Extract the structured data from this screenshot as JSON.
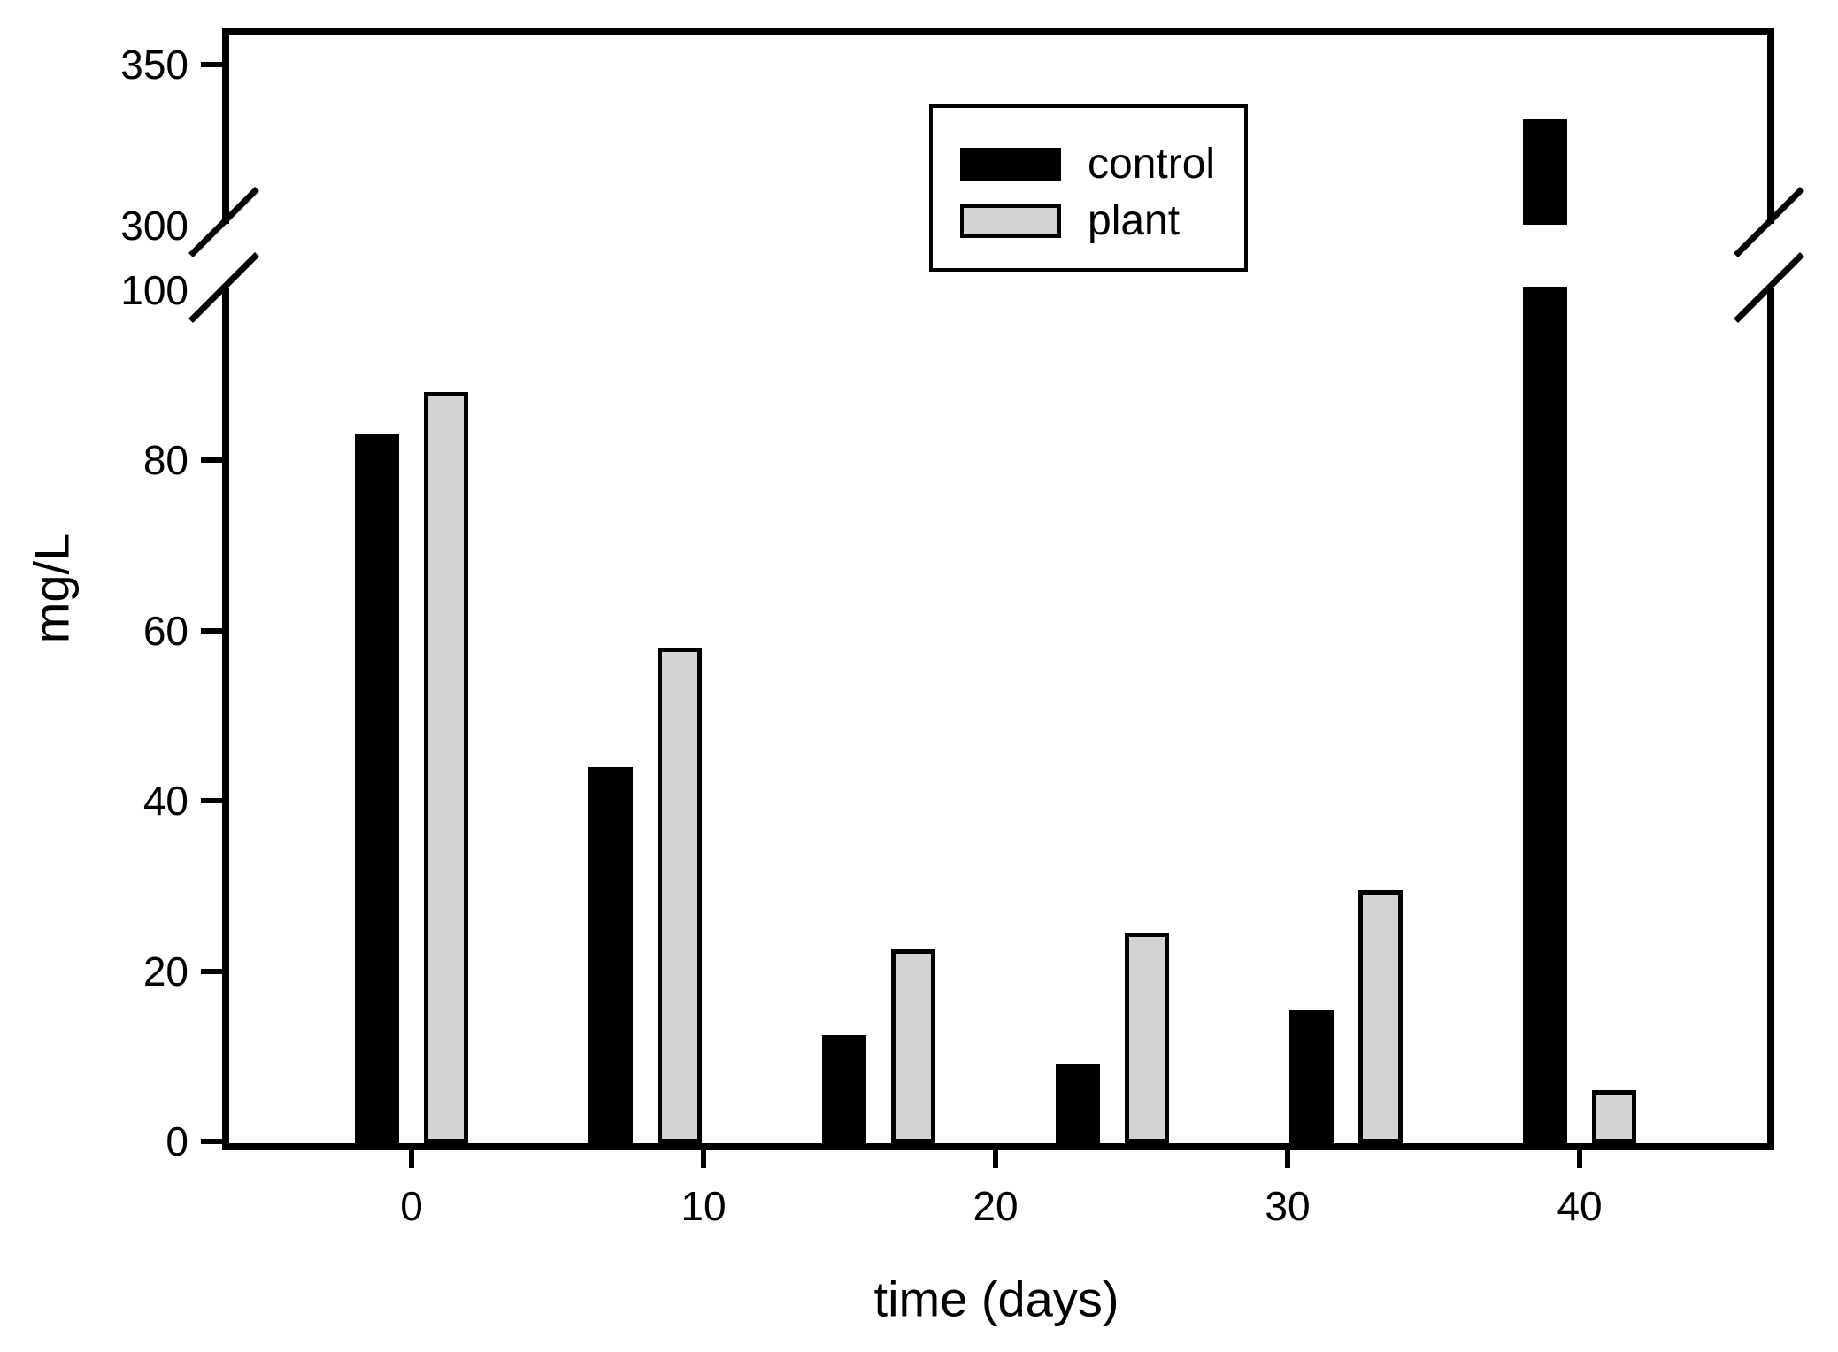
{
  "chart_data": {
    "type": "bar",
    "title": "",
    "xlabel": "time (days)",
    "ylabel": "mg/L",
    "x_days": [
      0,
      8,
      16,
      24,
      32,
      40
    ],
    "series": [
      {
        "name": "control",
        "color": "#000000",
        "values": [
          83,
          44,
          12.5,
          9,
          15.5,
          333
        ]
      },
      {
        "name": "plant",
        "color": "#d3d3d3",
        "values": [
          88,
          58,
          22.5,
          24.5,
          29.5,
          6
        ]
      }
    ],
    "y_axis": {
      "lower_segment": {
        "min": 0,
        "max": 100
      },
      "upper_segment": {
        "min": 300,
        "max": 350
      },
      "break_between": [
        100,
        300
      ]
    },
    "y_ticks": [
      {
        "label": "350",
        "value": 350,
        "tick": true
      },
      {
        "label": "300",
        "value": 300,
        "tick": false
      },
      {
        "label": "100",
        "value": 100,
        "tick": false
      },
      {
        "label": "80",
        "value": 80,
        "tick": true
      },
      {
        "label": "60",
        "value": 60,
        "tick": true
      },
      {
        "label": "40",
        "value": 40,
        "tick": true
      },
      {
        "label": "20",
        "value": 20,
        "tick": true
      },
      {
        "label": "0",
        "value": 0,
        "tick": true
      }
    ],
    "x_ticks": [
      {
        "label": "0",
        "value": 0
      },
      {
        "label": "10",
        "value": 10
      },
      {
        "label": "20",
        "value": 20
      },
      {
        "label": "30",
        "value": 30
      },
      {
        "label": "40",
        "value": 40
      }
    ],
    "legend_position": "top-center",
    "grid": false,
    "notes": "control bar at day 40 crosses the y-axis break (value ~333 mg/L)"
  }
}
